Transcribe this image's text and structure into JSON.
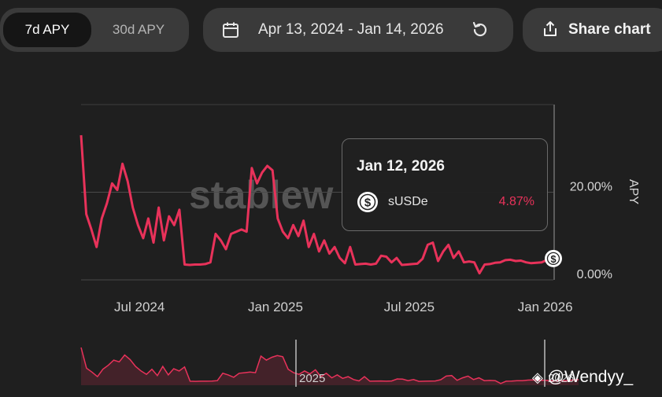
{
  "tabs": {
    "seven_day": "7d APY",
    "thirty_day": "30d APY",
    "active": "7d APY"
  },
  "date_range": {
    "label": "Apr 13, 2024 - Jan 14, 2026",
    "calendar_icon": "calendar-icon",
    "reset_icon": "reset-icon"
  },
  "share": {
    "label": "Share chart",
    "icon": "share-icon"
  },
  "watermark": "stablew",
  "tooltip": {
    "date": "Jan 12, 2026",
    "asset": "sUSDe",
    "value": "4.87%"
  },
  "navigator": {
    "left_label": "2025",
    "right_label": "2026"
  },
  "credit": "@Wendyy_",
  "colors": {
    "line": "#e8325a",
    "background": "#1f1f1f",
    "pill": "#3a3a3a"
  },
  "chart_data": {
    "type": "line",
    "series": [
      {
        "name": "sUSDe",
        "x": [
          "2024-04-13",
          "2024-04-20",
          "2024-04-27",
          "2024-05-04",
          "2024-05-11",
          "2024-05-18",
          "2024-05-25",
          "2024-06-01",
          "2024-06-08",
          "2024-06-15",
          "2024-06-22",
          "2024-06-29",
          "2024-07-06",
          "2024-07-13",
          "2024-07-20",
          "2024-07-27",
          "2024-08-03",
          "2024-08-10",
          "2024-08-17",
          "2024-08-24",
          "2024-08-31",
          "2024-09-07",
          "2024-09-14",
          "2024-09-21",
          "2024-09-28",
          "2024-10-05",
          "2024-10-12",
          "2024-10-19",
          "2024-10-26",
          "2024-11-02",
          "2024-11-09",
          "2024-11-16",
          "2024-11-23",
          "2024-11-30",
          "2024-12-07",
          "2024-12-14",
          "2024-12-21",
          "2024-12-28",
          "2025-01-04",
          "2025-01-11",
          "2025-01-18",
          "2025-01-25",
          "2025-02-01",
          "2025-02-08",
          "2025-02-15",
          "2025-02-22",
          "2025-03-01",
          "2025-03-08",
          "2025-03-15",
          "2025-03-22",
          "2025-03-29",
          "2025-04-05",
          "2025-04-12",
          "2025-04-19",
          "2025-04-26",
          "2025-05-03",
          "2025-05-10",
          "2025-05-17",
          "2025-05-24",
          "2025-05-31",
          "2025-06-07",
          "2025-06-14",
          "2025-06-21",
          "2025-06-28",
          "2025-07-05",
          "2025-07-12",
          "2025-07-19",
          "2025-07-26",
          "2025-08-02",
          "2025-08-09",
          "2025-08-16",
          "2025-08-23",
          "2025-08-30",
          "2025-09-06",
          "2025-09-13",
          "2025-09-20",
          "2025-09-27",
          "2025-10-04",
          "2025-10-11",
          "2025-10-18",
          "2025-10-25",
          "2025-11-01",
          "2025-11-08",
          "2025-11-15",
          "2025-11-22",
          "2025-11-29",
          "2025-12-06",
          "2025-12-13",
          "2025-12-20",
          "2025-12-27",
          "2026-01-03",
          "2026-01-12"
        ],
        "values": [
          33.0,
          15.0,
          11.5,
          7.5,
          14.0,
          17.5,
          22.0,
          20.5,
          26.5,
          22.5,
          16.5,
          12.5,
          9.5,
          14.0,
          8.5,
          16.5,
          9.0,
          14.5,
          12.5,
          16.0,
          3.5,
          3.4,
          3.5,
          3.5,
          3.6,
          4.0,
          10.5,
          9.0,
          7.0,
          10.5,
          11.0,
          11.5,
          11.0,
          25.5,
          22.0,
          24.5,
          26.0,
          25.0,
          14.0,
          11.0,
          9.5,
          12.5,
          10.0,
          13.5,
          7.5,
          10.5,
          6.5,
          9.0,
          6.0,
          7.5,
          5.0,
          3.8,
          7.5,
          3.5,
          3.6,
          3.7,
          3.5,
          3.7,
          5.5,
          5.3,
          4.0,
          5.0,
          3.4,
          3.5,
          3.6,
          3.7,
          4.8,
          8.0,
          8.5,
          4.3,
          6.5,
          8.0,
          5.0,
          6.5,
          4.0,
          4.2,
          4.0,
          1.5,
          3.5,
          3.6,
          3.9,
          4.0,
          4.5,
          4.6,
          4.3,
          4.4,
          4.0,
          3.8,
          3.9,
          4.0,
          4.5,
          4.87
        ]
      }
    ],
    "x_ticks": [
      "Jul 2024",
      "Jan 2025",
      "Jul 2025",
      "Jan 2026"
    ],
    "y_ticks": [
      "0.00%",
      "20.00%"
    ],
    "ylabel": "APY",
    "ylim": [
      0,
      40
    ],
    "grid": true,
    "legend": "none"
  }
}
